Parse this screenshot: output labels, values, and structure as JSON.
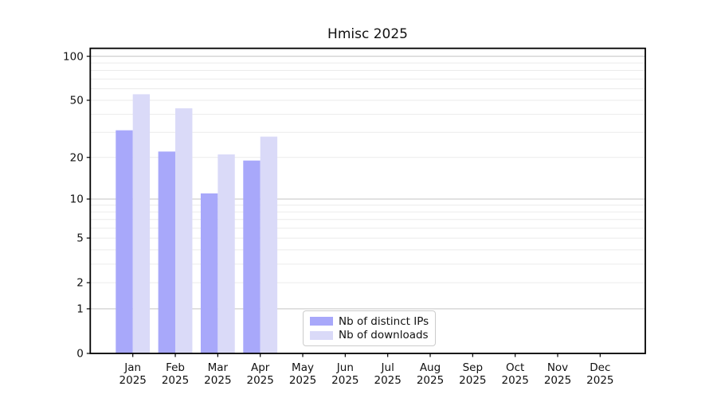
{
  "chart_data": {
    "type": "bar",
    "title": "Hmisc 2025",
    "categories": [
      "Jan",
      "Feb",
      "Mar",
      "Apr",
      "May",
      "Jun",
      "Jul",
      "Aug",
      "Sep",
      "Oct",
      "Nov",
      "Dec"
    ],
    "category_year": "2025",
    "series": [
      {
        "name": "Nb of distinct IPs",
        "color": "#a8a8fa",
        "values": [
          31,
          22,
          11,
          19,
          0,
          0,
          0,
          0,
          0,
          0,
          0,
          0
        ]
      },
      {
        "name": "Nb of downloads",
        "color": "#dadaf8",
        "values": [
          55,
          44,
          21,
          28,
          0,
          0,
          0,
          0,
          0,
          0,
          0,
          0
        ]
      }
    ],
    "xlabel": "",
    "ylabel": "",
    "yscale": "log1p",
    "ylim": [
      0,
      113
    ],
    "yticks": [
      0,
      1,
      2,
      5,
      10,
      20,
      50,
      100
    ],
    "grid": {
      "orientation": "horizontal",
      "major_values": [
        1,
        10,
        100
      ],
      "minor_values": [
        2,
        3,
        4,
        5,
        6,
        7,
        8,
        9,
        20,
        30,
        40,
        50,
        60,
        70,
        80,
        90
      ],
      "major_color": "#c9c9c9",
      "minor_color": "#ebebeb"
    },
    "legend": {
      "position": "bottom-center",
      "entries": [
        "Nb of distinct IPs",
        "Nb of downloads"
      ]
    },
    "colors": {
      "background": "#ffffff",
      "spine": "#000000",
      "tick_label": "#111111"
    }
  }
}
